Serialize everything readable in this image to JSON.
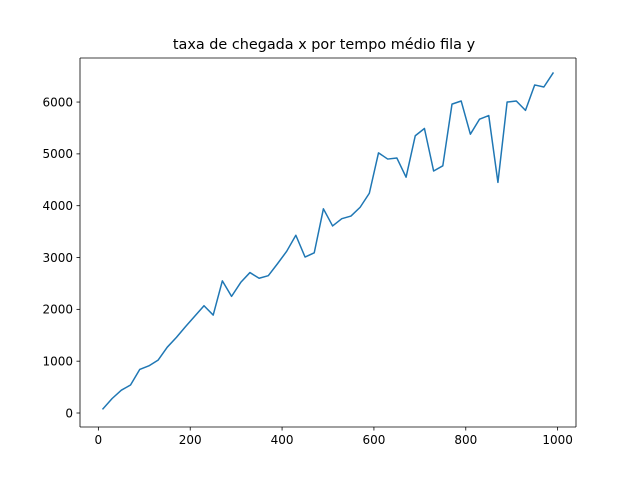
{
  "chart_data": {
    "type": "line",
    "title": "taxa de chegada x por tempo médio fila y",
    "xlabel": "",
    "ylabel": "",
    "xlim": [
      -40,
      1040
    ],
    "ylim": [
      -270,
      6850
    ],
    "grid": false,
    "x_ticks": [
      0,
      200,
      400,
      600,
      800,
      1000
    ],
    "x_tick_labels": [
      "0",
      "200",
      "400",
      "600",
      "800",
      "1000"
    ],
    "y_ticks": [
      0,
      1000,
      2000,
      3000,
      4000,
      5000,
      6000
    ],
    "y_tick_labels": [
      "0",
      "1000",
      "2000",
      "3000",
      "4000",
      "5000",
      "6000"
    ],
    "series": [
      {
        "color": "#1f77b4",
        "x": [
          10,
          30,
          50,
          70,
          90,
          110,
          130,
          150,
          170,
          190,
          210,
          230,
          250,
          270,
          290,
          310,
          330,
          350,
          370,
          390,
          410,
          430,
          450,
          470,
          490,
          510,
          530,
          550,
          570,
          590,
          610,
          630,
          650,
          670,
          690,
          710,
          730,
          750,
          770,
          790,
          810,
          830,
          850,
          870,
          890,
          910,
          930,
          950,
          970,
          990
        ],
        "y": [
          80,
          280,
          440,
          540,
          840,
          910,
          1020,
          1270,
          1460,
          1670,
          1870,
          2070,
          1890,
          2550,
          2250,
          2520,
          2710,
          2600,
          2650,
          2880,
          3120,
          3430,
          3010,
          3090,
          3940,
          3610,
          3750,
          3800,
          3970,
          4240,
          5020,
          4900,
          4920,
          4550,
          5350,
          5490,
          4670,
          4770,
          5960,
          6020,
          5380,
          5670,
          5740,
          4450,
          6000,
          6020,
          5840,
          6330,
          6290,
          6560
        ]
      }
    ]
  }
}
